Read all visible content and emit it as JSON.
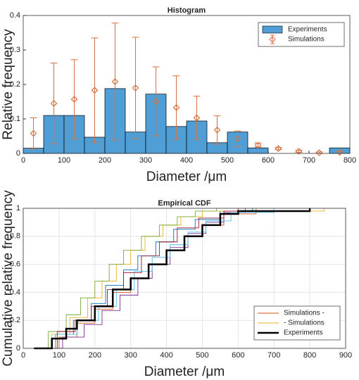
{
  "chart_data": [
    {
      "type": "histogram",
      "title": "Histogram",
      "xlabel": "Diameter /μm",
      "ylabel": "Relative frequency",
      "bins": [
        0,
        50,
        100,
        150,
        200,
        250,
        300,
        350,
        400,
        450,
        500,
        550,
        600,
        650,
        700,
        750,
        800
      ],
      "series": [
        {
          "name": "Experiments",
          "color": "#4f9fd6",
          "values": [
            0.015,
            0.11,
            0.11,
            0.047,
            0.188,
            0.062,
            0.172,
            0.078,
            0.094,
            0.031,
            0.062,
            0.016,
            0,
            0,
            0,
            0.016
          ]
        },
        {
          "name": "Simulations",
          "color": "#d9703f",
          "x": [
            25,
            75,
            125,
            175,
            225,
            275,
            325,
            375,
            425,
            475,
            525,
            575,
            625,
            675,
            725,
            775
          ],
          "values": [
            0.058,
            0.145,
            0.157,
            0.183,
            0.208,
            0.19,
            0.151,
            0.133,
            0.103,
            0.068,
            0.043,
            0.024,
            0.014,
            0.006,
            0.002,
            0.003
          ],
          "errors": [
            0.045,
            0.117,
            0.115,
            0.152,
            0.17,
            0.147,
            0.1,
            0.092,
            0.063,
            0.041,
            0.022,
            0.006,
            0.003,
            0.003,
            0.002,
            0.003
          ]
        }
      ],
      "xlim": [
        0,
        800
      ],
      "ylim": [
        0,
        0.4
      ],
      "xticks": [
        0,
        100,
        200,
        300,
        400,
        500,
        600,
        700,
        800
      ],
      "yticks": [
        0,
        0.1,
        0.2,
        0.3,
        0.4
      ],
      "grid": false,
      "legend": "upper right"
    },
    {
      "type": "step",
      "title": "Empirical CDF",
      "xlabel": "Diameter /μm",
      "ylabel": "Cumulative relative frequency",
      "series": [
        {
          "x": [
            30,
            90,
            140,
            190,
            230,
            280,
            320,
            370,
            420,
            480,
            550,
            640
          ],
          "values": [
            0,
            0.1,
            0.2,
            0.32,
            0.45,
            0.56,
            0.66,
            0.76,
            0.85,
            0.92,
            0.98,
            1
          ],
          "color": "#0072bd"
        },
        {
          "name": "Simulations -",
          "x": [
            40,
            100,
            150,
            200,
            250,
            300,
            350,
            400,
            450,
            500,
            560,
            650
          ],
          "values": [
            0,
            0.08,
            0.18,
            0.28,
            0.4,
            0.5,
            0.6,
            0.7,
            0.8,
            0.88,
            0.96,
            1
          ],
          "color": "#d95319"
        },
        {
          "name": "- Simulations",
          "x": [
            35,
            80,
            130,
            180,
            220,
            260,
            300,
            340,
            390,
            440,
            500,
            840
          ],
          "values": [
            0,
            0.1,
            0.22,
            0.36,
            0.48,
            0.6,
            0.7,
            0.8,
            0.88,
            0.94,
            0.98,
            1
          ],
          "color": "#edb120"
        },
        {
          "x": [
            30,
            110,
            170,
            220,
            270,
            320,
            360,
            410,
            460,
            510,
            560,
            620
          ],
          "values": [
            0,
            0.08,
            0.17,
            0.27,
            0.38,
            0.5,
            0.6,
            0.72,
            0.82,
            0.9,
            0.97,
            1
          ],
          "color": "#7e2f8e"
        },
        {
          "x": [
            30,
            70,
            120,
            160,
            200,
            240,
            280,
            330,
            380,
            430,
            480,
            540
          ],
          "values": [
            0,
            0.12,
            0.24,
            0.36,
            0.48,
            0.6,
            0.7,
            0.8,
            0.88,
            0.94,
            0.98,
            1
          ],
          "color": "#77ac30"
        },
        {
          "x": [
            30,
            90,
            150,
            210,
            260,
            310,
            360,
            410,
            460,
            510,
            580,
            700
          ],
          "values": [
            0,
            0.1,
            0.2,
            0.3,
            0.42,
            0.55,
            0.65,
            0.74,
            0.83,
            0.91,
            0.97,
            1
          ],
          "color": "#4dbeee"
        },
        {
          "x": [
            35,
            95,
            145,
            190,
            235,
            280,
            330,
            380,
            430,
            490,
            560,
            600
          ],
          "values": [
            0,
            0.12,
            0.2,
            0.3,
            0.42,
            0.54,
            0.66,
            0.76,
            0.86,
            0.93,
            0.98,
            1
          ],
          "color": "#a2142f"
        },
        {
          "name": "Experiments",
          "x": [
            30,
            80,
            120,
            150,
            200,
            250,
            300,
            350,
            400,
            450,
            500,
            550,
            600,
            800
          ],
          "values": [
            0,
            0.07,
            0.14,
            0.2,
            0.3,
            0.42,
            0.5,
            0.6,
            0.7,
            0.8,
            0.88,
            0.96,
            0.98,
            1
          ],
          "color": "#000000",
          "width": 2.5
        }
      ],
      "xlim": [
        0,
        900
      ],
      "ylim": [
        0,
        1
      ],
      "xticks": [
        0,
        100,
        200,
        300,
        400,
        500,
        600,
        700,
        800,
        900
      ],
      "yticks": [
        0,
        0.2,
        0.4,
        0.6,
        0.8,
        1
      ],
      "grid": true,
      "legend": "lower right"
    }
  ]
}
